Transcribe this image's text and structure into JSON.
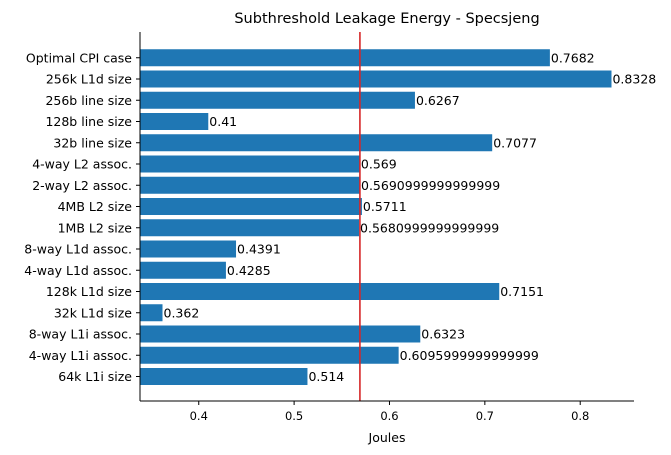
{
  "chart_data": {
    "type": "bar",
    "orientation": "horizontal",
    "title": "Subthreshold Leakage Energy - Specsjeng",
    "xlabel": "Joules",
    "ylabel": "",
    "categories": [
      "64k L1i size",
      "4-way L1i assoc.",
      "8-way L1i assoc.",
      "32k L1d size",
      "128k L1d size",
      "4-way L1d assoc.",
      "8-way L1d assoc.",
      "1MB L2 size",
      "4MB L2 size",
      "2-way L2 assoc.",
      "4-way L2 assoc.",
      "32b line size",
      "128b line size",
      "256b line size",
      "256k L1d size",
      "Optimal CPI case"
    ],
    "values": [
      0.514,
      0.6095999999999999,
      0.6323,
      0.362,
      0.7151,
      0.4285,
      0.4391,
      0.5680999999999999,
      0.5711,
      0.5690999999999999,
      0.569,
      0.7077,
      0.41,
      0.6267,
      0.8328,
      0.7682
    ],
    "value_labels": [
      "0.514",
      "0.6095999999999999",
      "0.6323",
      "0.362",
      "0.7151",
      "0.4285",
      "0.4391",
      "0.5680999999999999",
      "0.5711",
      "0.5690999999999999",
      "0.569",
      "0.7077",
      "0.41",
      "0.6267",
      "0.8328",
      "0.7682"
    ],
    "xticks": [
      0.4,
      0.5,
      0.6,
      0.7,
      0.8
    ],
    "xtick_labels": [
      "0.4",
      "0.5",
      "0.6",
      "0.7",
      "0.8"
    ],
    "xlim": [
      0.3384,
      0.8564
    ],
    "reference_line": {
      "x": 0.569,
      "color": "#d62728"
    },
    "bar_color": "#1f77b4",
    "grid": false,
    "legend": "none"
  }
}
